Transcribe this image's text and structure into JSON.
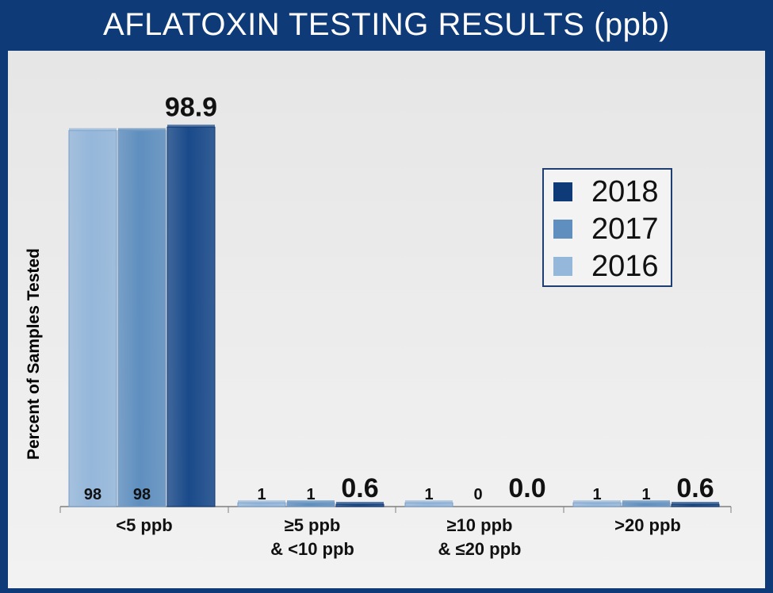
{
  "title": "AFLATOXIN TESTING RESULTS (ppb)",
  "chart_data": {
    "type": "bar",
    "title": "AFLATOXIN TESTING RESULTS (ppb)",
    "ylabel": "Percent of Samples Tested",
    "xlabel": "",
    "ylim": [
      0,
      100
    ],
    "categories": [
      [
        "<5 ppb"
      ],
      [
        "≥5 ppb",
        "& <10 ppb"
      ],
      [
        "≥10 ppb",
        "& ≤20 ppb"
      ],
      [
        ">20 ppb"
      ]
    ],
    "series": [
      {
        "name": "2016",
        "color": "#95b7da",
        "values": [
          98,
          1,
          1,
          1
        ],
        "labels": [
          "98",
          "1",
          "1",
          "1"
        ]
      },
      {
        "name": "2017",
        "color": "#5f8fbf",
        "values": [
          98,
          1,
          0,
          1
        ],
        "labels": [
          "98",
          "1",
          "0",
          "1"
        ]
      },
      {
        "name": "2018",
        "color": "#1a4a8a",
        "values": [
          98.9,
          0.6,
          0.0,
          0.6
        ],
        "labels": [
          "98.9",
          "0.6",
          "0.0",
          "0.6"
        ]
      }
    ],
    "legend": {
      "position": "right",
      "entries": [
        {
          "name": "2018",
          "color": "#0f3a78"
        },
        {
          "name": "2017",
          "color": "#5f8fbf"
        },
        {
          "name": "2016",
          "color": "#95b7da"
        }
      ]
    },
    "grid": false
  }
}
